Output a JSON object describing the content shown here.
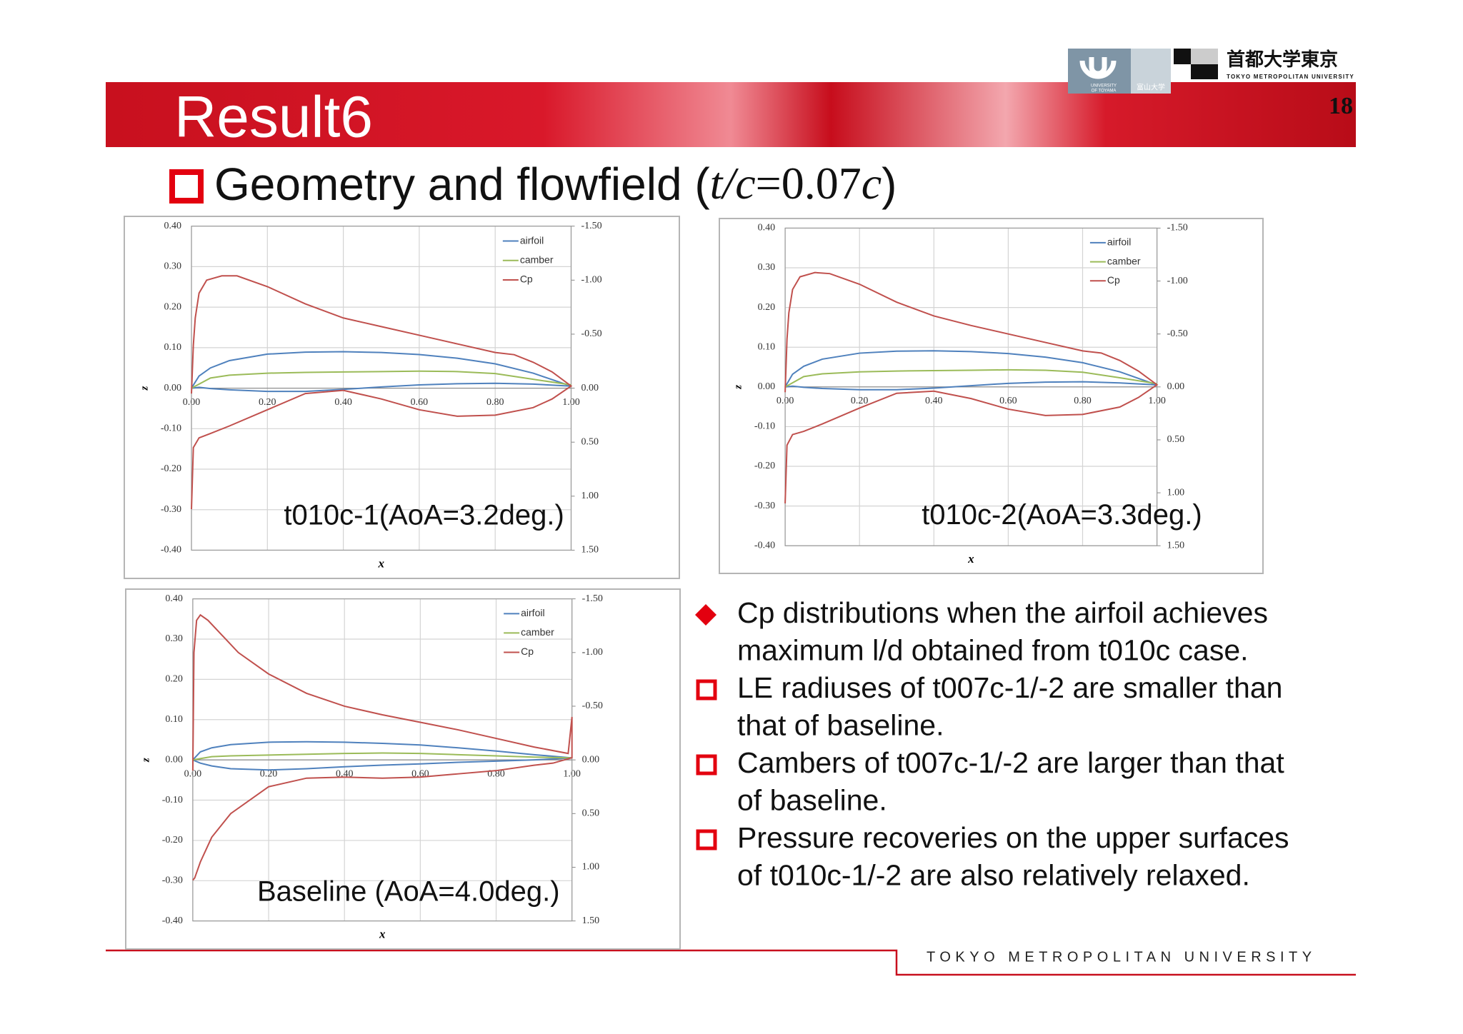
{
  "slide": {
    "title": "Result6",
    "page": "18",
    "subtitle": [
      "Geometry and flowfield (",
      "t/c",
      "=0.07",
      "c",
      ")"
    ],
    "logos": {
      "toyama_en": [
        "UNIVERSITY",
        "OF TOYAMA"
      ],
      "toyama_jp": "富山大学",
      "tmu_jp": "首都大学東京",
      "tmu_en": "TOKYO METROPOLITAN UNIVERSITY"
    },
    "bullets": [
      [
        "Cp distributions when the airfoil achieves",
        "maximum l/d obtained from t010c case."
      ],
      [
        "LE radiuses of t007c-1/-2 are smaller than",
        "that of baseline."
      ],
      [
        "Cambers of t007c-1/-2 are larger than that",
        "of baseline."
      ],
      [
        "Pressure recoveries on the upper surfaces",
        "of t010c-1/-2 are also relatively relaxed."
      ]
    ],
    "footer": "TOKYO METROPOLITAN UNIVERSITY"
  },
  "chart_data": [
    {
      "type": "line",
      "title": "t010c-1(AoA=3.2deg.)",
      "xlabel": "x",
      "ylabel": "z",
      "xlim": [
        0,
        1
      ],
      "ylim": [
        -0.4,
        0.4
      ],
      "y2lim": [
        -1.5,
        1.5
      ],
      "y2_inverted": true,
      "grid": true,
      "legend": "upper right",
      "xticks": [
        {
          "value": 0,
          "label": "0.00"
        },
        {
          "value": 0.2,
          "label": "0.20"
        },
        {
          "value": 0.4,
          "label": "0.40"
        },
        {
          "value": 0.6,
          "label": "0.60"
        },
        {
          "value": 0.8,
          "label": "0.80"
        },
        {
          "value": 1,
          "label": "1.00"
        }
      ],
      "yticks": [
        {
          "value": -0.4,
          "label": "-0.40"
        },
        {
          "value": -0.3,
          "label": "-0.30"
        },
        {
          "value": -0.2,
          "label": "-0.20"
        },
        {
          "value": -0.1,
          "label": "-0.10"
        },
        {
          "value": 0,
          "label": "0.00"
        },
        {
          "value": 0.1,
          "label": "0.10"
        },
        {
          "value": 0.2,
          "label": "0.20"
        },
        {
          "value": 0.3,
          "label": "0.30"
        },
        {
          "value": 0.4,
          "label": "0.40"
        }
      ],
      "y2ticks": [
        {
          "value": -1.5,
          "label": "-1.50"
        },
        {
          "value": -1,
          "label": "-1.00"
        },
        {
          "value": -0.5,
          "label": "-0.50"
        },
        {
          "value": 0,
          "label": "0.00"
        },
        {
          "value": 0.5,
          "label": "0.50"
        },
        {
          "value": 1,
          "label": "1.00"
        },
        {
          "value": 1.5,
          "label": "1.50"
        }
      ],
      "series": [
        {
          "name": "airfoil",
          "color": "#4f81bd",
          "x": [
            0,
            0.02,
            0.05,
            0.1,
            0.2,
            0.3,
            0.4,
            0.5,
            0.6,
            0.7,
            0.8,
            0.9,
            1,
            0.9,
            0.8,
            0.7,
            0.6,
            0.5,
            0.4,
            0.3,
            0.2,
            0.1,
            0.05,
            0.02,
            0
          ],
          "values": [
            0,
            0.03,
            0.05,
            0.068,
            0.084,
            0.089,
            0.09,
            0.088,
            0.083,
            0.074,
            0.06,
            0.037,
            0.005,
            0.01,
            0.012,
            0.011,
            0.008,
            0.003,
            -0.003,
            -0.008,
            -0.008,
            -0.004,
            -0.001,
            0.002,
            0
          ]
        },
        {
          "name": "camber",
          "color": "#9bbb59",
          "x": [
            0,
            0.05,
            0.1,
            0.2,
            0.3,
            0.4,
            0.5,
            0.6,
            0.7,
            0.8,
            0.9,
            1
          ],
          "values": [
            0,
            0.025,
            0.032,
            0.037,
            0.039,
            0.04,
            0.041,
            0.042,
            0.041,
            0.036,
            0.022,
            0.008
          ]
        },
        {
          "name": "Cp",
          "color": "#c0504d",
          "axis": "y2",
          "x": [
            0,
            0.005,
            0.01,
            0.02,
            0.04,
            0.08,
            0.12,
            0.2,
            0.3,
            0.4,
            0.5,
            0.6,
            0.7,
            0.8,
            0.85,
            0.9,
            0.95,
            1,
            0.95,
            0.9,
            0.8,
            0.7,
            0.6,
            0.5,
            0.4,
            0.3,
            0.2,
            0.1,
            0.05,
            0.02,
            0.005,
            0
          ],
          "values": [
            0.05,
            -0.4,
            -0.65,
            -0.88,
            -1.0,
            -1.04,
            -1.04,
            -0.94,
            -0.78,
            -0.65,
            -0.57,
            -0.49,
            -0.41,
            -0.33,
            -0.31,
            -0.24,
            -0.15,
            -0.02,
            0.1,
            0.18,
            0.25,
            0.26,
            0.2,
            0.1,
            0.02,
            0.05,
            0.2,
            0.35,
            0.42,
            0.46,
            0.55,
            1.12
          ]
        }
      ]
    },
    {
      "type": "line",
      "title": "t010c-2(AoA=3.3deg.)",
      "xlabel": "x",
      "ylabel": "z",
      "xlim": [
        0,
        1
      ],
      "ylim": [
        -0.4,
        0.4
      ],
      "y2lim": [
        -1.5,
        1.5
      ],
      "y2_inverted": true,
      "grid": true,
      "legend": "upper right",
      "xticks": [
        {
          "value": 0,
          "label": "0.00"
        },
        {
          "value": 0.2,
          "label": "0.20"
        },
        {
          "value": 0.4,
          "label": "0.40"
        },
        {
          "value": 0.6,
          "label": "0.60"
        },
        {
          "value": 0.8,
          "label": "0.80"
        },
        {
          "value": 1,
          "label": "1.00"
        }
      ],
      "yticks": [
        {
          "value": -0.4,
          "label": "-0.40"
        },
        {
          "value": -0.3,
          "label": "-0.30"
        },
        {
          "value": -0.2,
          "label": "-0.20"
        },
        {
          "value": -0.1,
          "label": "-0.10"
        },
        {
          "value": 0,
          "label": "0.00"
        },
        {
          "value": 0.1,
          "label": "0.10"
        },
        {
          "value": 0.2,
          "label": "0.20"
        },
        {
          "value": 0.3,
          "label": "0.30"
        },
        {
          "value": 0.4,
          "label": "0.40"
        }
      ],
      "y2ticks": [
        {
          "value": -1.5,
          "label": "-1.50"
        },
        {
          "value": -1,
          "label": "-1.00"
        },
        {
          "value": -0.5,
          "label": "-0.50"
        },
        {
          "value": 0,
          "label": "0.00"
        },
        {
          "value": 0.5,
          "label": "0.50"
        },
        {
          "value": 1,
          "label": "1.00"
        },
        {
          "value": 1.5,
          "label": "1.50"
        }
      ],
      "series": [
        {
          "name": "airfoil",
          "color": "#4f81bd",
          "x": [
            0,
            0.02,
            0.05,
            0.1,
            0.2,
            0.3,
            0.4,
            0.5,
            0.6,
            0.7,
            0.8,
            0.9,
            1,
            0.9,
            0.8,
            0.7,
            0.6,
            0.5,
            0.4,
            0.3,
            0.2,
            0.1,
            0.05,
            0.02,
            0
          ],
          "values": [
            0,
            0.032,
            0.052,
            0.07,
            0.085,
            0.09,
            0.091,
            0.089,
            0.084,
            0.075,
            0.061,
            0.038,
            0.005,
            0.01,
            0.013,
            0.012,
            0.009,
            0.003,
            -0.003,
            -0.007,
            -0.007,
            -0.004,
            -0.001,
            0.002,
            0
          ]
        },
        {
          "name": "camber",
          "color": "#9bbb59",
          "x": [
            0,
            0.05,
            0.1,
            0.2,
            0.3,
            0.4,
            0.5,
            0.6,
            0.7,
            0.8,
            0.9,
            1
          ],
          "values": [
            0,
            0.026,
            0.033,
            0.038,
            0.04,
            0.041,
            0.042,
            0.043,
            0.042,
            0.037,
            0.023,
            0.008
          ]
        },
        {
          "name": "Cp",
          "color": "#c0504d",
          "axis": "y2",
          "x": [
            0,
            0.005,
            0.01,
            0.02,
            0.04,
            0.08,
            0.12,
            0.2,
            0.3,
            0.4,
            0.5,
            0.6,
            0.7,
            0.8,
            0.85,
            0.9,
            0.95,
            1,
            0.95,
            0.9,
            0.8,
            0.7,
            0.6,
            0.5,
            0.4,
            0.3,
            0.2,
            0.1,
            0.05,
            0.02,
            0.005,
            0
          ],
          "values": [
            0.05,
            -0.45,
            -0.7,
            -0.92,
            -1.04,
            -1.08,
            -1.07,
            -0.97,
            -0.8,
            -0.67,
            -0.58,
            -0.5,
            -0.42,
            -0.34,
            -0.32,
            -0.25,
            -0.15,
            -0.02,
            0.1,
            0.19,
            0.26,
            0.27,
            0.21,
            0.11,
            0.04,
            0.06,
            0.2,
            0.35,
            0.42,
            0.45,
            0.55,
            1.1
          ]
        }
      ]
    },
    {
      "type": "line",
      "title": "Baseline (AoA=4.0deg.)",
      "xlabel": "x",
      "ylabel": "z",
      "xlim": [
        0,
        1
      ],
      "ylim": [
        -0.4,
        0.4
      ],
      "y2lim": [
        -1.5,
        1.5
      ],
      "y2_inverted": true,
      "grid": true,
      "legend": "upper right",
      "xticks": [
        {
          "value": 0,
          "label": "0.00"
        },
        {
          "value": 0.2,
          "label": "0.20"
        },
        {
          "value": 0.4,
          "label": "0.40"
        },
        {
          "value": 0.6,
          "label": "0.60"
        },
        {
          "value": 0.8,
          "label": "0.80"
        },
        {
          "value": 1,
          "label": "1.00"
        }
      ],
      "yticks": [
        {
          "value": -0.4,
          "label": "-0.40"
        },
        {
          "value": -0.3,
          "label": "-0.30"
        },
        {
          "value": -0.2,
          "label": "-0.20"
        },
        {
          "value": -0.1,
          "label": "-0.10"
        },
        {
          "value": 0,
          "label": "0.00"
        },
        {
          "value": 0.1,
          "label": "0.10"
        },
        {
          "value": 0.2,
          "label": "0.20"
        },
        {
          "value": 0.3,
          "label": "0.30"
        },
        {
          "value": 0.4,
          "label": "0.40"
        }
      ],
      "y2ticks": [
        {
          "value": -1.5,
          "label": "-1.50"
        },
        {
          "value": -1,
          "label": "-1.00"
        },
        {
          "value": -0.5,
          "label": "-0.50"
        },
        {
          "value": 0,
          "label": "0.00"
        },
        {
          "value": 0.5,
          "label": "0.50"
        },
        {
          "value": 1,
          "label": "1.00"
        },
        {
          "value": 1.5,
          "label": "1.50"
        }
      ],
      "series": [
        {
          "name": "airfoil",
          "color": "#4f81bd",
          "x": [
            0,
            0.02,
            0.05,
            0.1,
            0.2,
            0.3,
            0.4,
            0.5,
            0.6,
            0.7,
            0.8,
            0.9,
            1,
            0.9,
            0.8,
            0.7,
            0.6,
            0.5,
            0.4,
            0.3,
            0.2,
            0.1,
            0.05,
            0.02,
            0
          ],
          "values": [
            0,
            0.02,
            0.03,
            0.038,
            0.044,
            0.045,
            0.044,
            0.041,
            0.037,
            0.03,
            0.022,
            0.013,
            0.005,
            0,
            -0.003,
            -0.006,
            -0.01,
            -0.013,
            -0.017,
            -0.022,
            -0.025,
            -0.022,
            -0.015,
            -0.008,
            0
          ]
        },
        {
          "name": "camber",
          "color": "#9bbb59",
          "x": [
            0,
            0.05,
            0.1,
            0.2,
            0.3,
            0.4,
            0.5,
            0.6,
            0.7,
            0.8,
            0.9,
            1
          ],
          "values": [
            0,
            0.008,
            0.01,
            0.012,
            0.014,
            0.016,
            0.017,
            0.016,
            0.013,
            0.01,
            0.007,
            0.005
          ]
        },
        {
          "name": "Cp",
          "color": "#c0504d",
          "axis": "y2",
          "x": [
            0,
            0.003,
            0.01,
            0.02,
            0.04,
            0.08,
            0.12,
            0.2,
            0.3,
            0.4,
            0.5,
            0.6,
            0.7,
            0.8,
            0.9,
            0.99,
            1,
            1,
            0.95,
            0.9,
            0.8,
            0.7,
            0.6,
            0.5,
            0.4,
            0.3,
            0.2,
            0.1,
            0.05,
            0.02,
            0.005,
            0
          ],
          "values": [
            0.1,
            -1.0,
            -1.3,
            -1.35,
            -1.3,
            -1.15,
            -1.0,
            -0.8,
            -0.62,
            -0.5,
            -0.42,
            -0.35,
            -0.28,
            -0.2,
            -0.12,
            -0.06,
            -0.4,
            -0.02,
            0.03,
            0.05,
            0.1,
            0.13,
            0.16,
            0.17,
            0.16,
            0.17,
            0.25,
            0.5,
            0.72,
            0.95,
            1.1,
            1.12
          ]
        }
      ]
    }
  ]
}
